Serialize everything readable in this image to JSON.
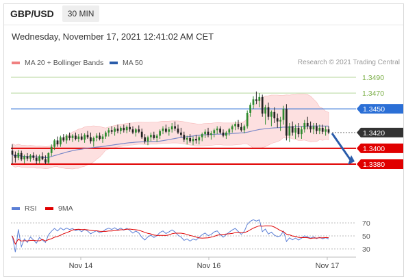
{
  "header": {
    "symbol": "GBP/USD",
    "timeframe": "30 MIN"
  },
  "timestamp": "Wednesday, November 17, 2021 12:41:02 AM CET",
  "legend": {
    "ma20": {
      "label": "MA 20 + Bollinger Bands",
      "color": "#f08080"
    },
    "ma50": {
      "label": "MA 50",
      "color": "#2a5caa"
    }
  },
  "credit": "Research © 2021 Trading Central",
  "rsi_legend": {
    "rsi": {
      "label": "RSI",
      "color": "#5b7fd6"
    },
    "ma9": {
      "label": "9MA",
      "color": "#e00000"
    }
  },
  "chart_data": {
    "type": "candlestick",
    "price_ylim": [
      1.335,
      1.35
    ],
    "levels": [
      {
        "value": 1.349,
        "label": "1.3490",
        "color": "#7db04a",
        "kind": "target"
      },
      {
        "value": 1.347,
        "label": "1.3470",
        "color": "#7db04a",
        "kind": "target"
      },
      {
        "value": 1.345,
        "label": "1.3450",
        "color": "#2b6fd6",
        "kind": "pivot"
      },
      {
        "value": 1.342,
        "label": "1.3420",
        "color": "#333333",
        "kind": "last"
      },
      {
        "value": 1.34,
        "label": "1.3400",
        "color": "#e00000",
        "kind": "support"
      },
      {
        "value": 1.338,
        "label": "1.3380",
        "color": "#e00000",
        "kind": "support"
      }
    ],
    "x_labels": [
      "Nov 14",
      "Nov 16",
      "Nov 17"
    ],
    "rsi_levels": [
      "70",
      "50",
      "30"
    ],
    "candles": [
      [
        1.3397,
        1.3405,
        1.338,
        1.3392
      ],
      [
        1.3392,
        1.3396,
        1.3382,
        1.3388
      ],
      [
        1.3388,
        1.3398,
        1.3385,
        1.3394
      ],
      [
        1.3394,
        1.3397,
        1.3384,
        1.3386
      ],
      [
        1.3386,
        1.3392,
        1.3381,
        1.339
      ],
      [
        1.339,
        1.3394,
        1.3384,
        1.3387
      ],
      [
        1.3387,
        1.3393,
        1.3383,
        1.3391
      ],
      [
        1.3391,
        1.3395,
        1.3385,
        1.3388
      ],
      [
        1.3388,
        1.3392,
        1.338,
        1.3384
      ],
      [
        1.3384,
        1.3392,
        1.3381,
        1.339
      ],
      [
        1.339,
        1.3395,
        1.3385,
        1.3386
      ],
      [
        1.3386,
        1.3391,
        1.338,
        1.3382
      ],
      [
        1.3382,
        1.3395,
        1.338,
        1.3394
      ],
      [
        1.3394,
        1.3405,
        1.339,
        1.3402
      ],
      [
        1.3402,
        1.3412,
        1.3398,
        1.341
      ],
      [
        1.341,
        1.3415,
        1.3402,
        1.3405
      ],
      [
        1.3405,
        1.3416,
        1.3402,
        1.3414
      ],
      [
        1.3414,
        1.3418,
        1.3408,
        1.341
      ],
      [
        1.341,
        1.3418,
        1.3406,
        1.3416
      ],
      [
        1.3416,
        1.342,
        1.341,
        1.3413
      ],
      [
        1.3413,
        1.3418,
        1.3408,
        1.3416
      ],
      [
        1.3416,
        1.342,
        1.341,
        1.3412
      ],
      [
        1.3412,
        1.3418,
        1.3408,
        1.3415
      ],
      [
        1.3415,
        1.3419,
        1.341,
        1.3411
      ],
      [
        1.3411,
        1.3419,
        1.3407,
        1.3417
      ],
      [
        1.3417,
        1.3422,
        1.3412,
        1.3414
      ],
      [
        1.3414,
        1.342,
        1.3406,
        1.3409
      ],
      [
        1.3409,
        1.3415,
        1.3402,
        1.3413
      ],
      [
        1.3413,
        1.3419,
        1.3409,
        1.3416
      ],
      [
        1.3416,
        1.342,
        1.341,
        1.3412
      ],
      [
        1.3412,
        1.3418,
        1.3407,
        1.3415
      ],
      [
        1.3415,
        1.3422,
        1.3412,
        1.342
      ],
      [
        1.342,
        1.3426,
        1.3415,
        1.3423
      ],
      [
        1.3423,
        1.3428,
        1.3418,
        1.3421
      ],
      [
        1.3421,
        1.3427,
        1.3416,
        1.3425
      ],
      [
        1.3425,
        1.343,
        1.3419,
        1.3422
      ],
      [
        1.3422,
        1.3428,
        1.3418,
        1.3426
      ],
      [
        1.3426,
        1.343,
        1.342,
        1.3423
      ],
      [
        1.3423,
        1.3429,
        1.3419,
        1.3427
      ],
      [
        1.3427,
        1.3432,
        1.3421,
        1.3424
      ],
      [
        1.3424,
        1.3428,
        1.3418,
        1.342
      ],
      [
        1.342,
        1.3426,
        1.3415,
        1.3424
      ],
      [
        1.3424,
        1.3429,
        1.3419,
        1.3421
      ],
      [
        1.3421,
        1.3425,
        1.3412,
        1.3414
      ],
      [
        1.3414,
        1.3418,
        1.3406,
        1.3409
      ],
      [
        1.3409,
        1.3416,
        1.3404,
        1.3414
      ],
      [
        1.3414,
        1.342,
        1.3409,
        1.3417
      ],
      [
        1.3417,
        1.3421,
        1.3411,
        1.3413
      ],
      [
        1.3413,
        1.3418,
        1.3408,
        1.3416
      ],
      [
        1.3416,
        1.3424,
        1.3412,
        1.3422
      ],
      [
        1.3422,
        1.3428,
        1.3418,
        1.3425
      ],
      [
        1.3425,
        1.343,
        1.3419,
        1.3421
      ],
      [
        1.3421,
        1.3427,
        1.3416,
        1.3424
      ],
      [
        1.3424,
        1.3432,
        1.342,
        1.3428
      ],
      [
        1.3428,
        1.3434,
        1.3422,
        1.3425
      ],
      [
        1.3425,
        1.343,
        1.3418,
        1.342
      ],
      [
        1.342,
        1.3426,
        1.3414,
        1.3417
      ],
      [
        1.3417,
        1.3421,
        1.3408,
        1.3411
      ],
      [
        1.3411,
        1.3416,
        1.3405,
        1.3413
      ],
      [
        1.3413,
        1.3418,
        1.3407,
        1.3409
      ],
      [
        1.3409,
        1.3415,
        1.3404,
        1.3412
      ],
      [
        1.3412,
        1.3417,
        1.3406,
        1.341
      ],
      [
        1.341,
        1.3416,
        1.3405,
        1.3414
      ],
      [
        1.3414,
        1.342,
        1.3409,
        1.3418
      ],
      [
        1.3418,
        1.3424,
        1.3413,
        1.3421
      ],
      [
        1.3421,
        1.3426,
        1.3414,
        1.3417
      ],
      [
        1.3417,
        1.3422,
        1.3411,
        1.3419
      ],
      [
        1.3419,
        1.3425,
        1.3414,
        1.3423
      ],
      [
        1.3423,
        1.3428,
        1.3418,
        1.3425
      ],
      [
        1.3425,
        1.3428,
        1.3418,
        1.342
      ],
      [
        1.342,
        1.3424,
        1.3414,
        1.3416
      ],
      [
        1.3416,
        1.3422,
        1.3412,
        1.342
      ],
      [
        1.342,
        1.3426,
        1.3416,
        1.3424
      ],
      [
        1.3424,
        1.343,
        1.342,
        1.3428
      ],
      [
        1.3428,
        1.3434,
        1.3423,
        1.3431
      ],
      [
        1.3431,
        1.3436,
        1.3424,
        1.3427
      ],
      [
        1.3427,
        1.3432,
        1.3421,
        1.3423
      ],
      [
        1.3423,
        1.343,
        1.3419,
        1.3428
      ],
      [
        1.3428,
        1.3448,
        1.3425,
        1.3445
      ],
      [
        1.3445,
        1.3458,
        1.344,
        1.3455
      ],
      [
        1.3455,
        1.3466,
        1.345,
        1.3462
      ],
      [
        1.3462,
        1.3472,
        1.3456,
        1.346
      ],
      [
        1.346,
        1.347,
        1.3452,
        1.3465
      ],
      [
        1.3465,
        1.3468,
        1.344,
        1.3444
      ],
      [
        1.3444,
        1.3455,
        1.343,
        1.3452
      ],
      [
        1.3452,
        1.3458,
        1.3436,
        1.344
      ],
      [
        1.344,
        1.3448,
        1.3428,
        1.3446
      ],
      [
        1.3446,
        1.3452,
        1.3432,
        1.3438
      ],
      [
        1.3438,
        1.3444,
        1.3426,
        1.3434
      ],
      [
        1.3434,
        1.344,
        1.3422,
        1.3436
      ],
      [
        1.3436,
        1.3454,
        1.343,
        1.345
      ],
      [
        1.345,
        1.3456,
        1.341,
        1.3416
      ],
      [
        1.3416,
        1.3432,
        1.3408,
        1.3428
      ],
      [
        1.3428,
        1.3434,
        1.3416,
        1.342
      ],
      [
        1.342,
        1.343,
        1.3412,
        1.3426
      ],
      [
        1.3426,
        1.3432,
        1.3414,
        1.3418
      ],
      [
        1.3418,
        1.3428,
        1.3412,
        1.3424
      ],
      [
        1.3424,
        1.3436,
        1.342,
        1.3432
      ],
      [
        1.3432,
        1.344,
        1.3424,
        1.3428
      ],
      [
        1.3428,
        1.3434,
        1.342,
        1.3424
      ],
      [
        1.3424,
        1.3432,
        1.3418,
        1.3428
      ],
      [
        1.3428,
        1.3432,
        1.3418,
        1.3422
      ],
      [
        1.3422,
        1.343,
        1.3418,
        1.3426
      ],
      [
        1.3426,
        1.343,
        1.3418,
        1.3421
      ],
      [
        1.3421,
        1.3428,
        1.3416,
        1.3424
      ],
      [
        1.3424,
        1.3428,
        1.3418,
        1.342
      ]
    ]
  }
}
